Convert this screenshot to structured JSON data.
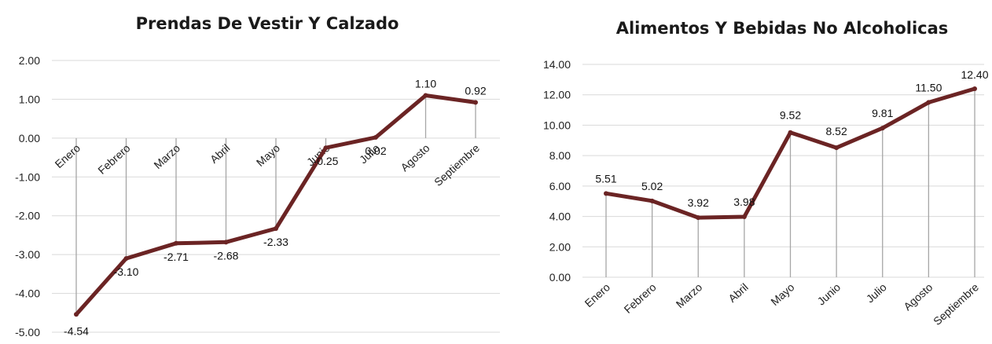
{
  "chart_data": [
    {
      "type": "line",
      "title": "Prendas De Vestir Y Calzado",
      "categories": [
        "Enero",
        "Febrero",
        "Marzo",
        "Abril",
        "Mayo",
        "Junio",
        "Julio",
        "Agosto",
        "Septiembre"
      ],
      "values": [
        -4.54,
        -3.1,
        -2.71,
        -2.68,
        -2.33,
        -0.25,
        0.02,
        1.1,
        0.92
      ],
      "data_labels": [
        "-4.54",
        "-3.10",
        "-2.71",
        "-2.68",
        "-2.33",
        "-0.25",
        "0.02",
        "1.10",
        "0.92"
      ],
      "ylim": [
        -5,
        2
      ],
      "yticks": [
        2,
        1,
        0,
        -1,
        -2,
        -3,
        -4,
        -5
      ],
      "ytick_labels": [
        "2.00",
        "1.00",
        "0.00",
        "-1.00",
        "-2.00",
        "-3.00",
        "-4.00",
        "-5.00"
      ],
      "grid": true,
      "drop_lines": true,
      "line_color": "#6b2424"
    },
    {
      "type": "line",
      "title": "Alimentos Y Bebidas No Alcoholicas",
      "categories": [
        "Enero",
        "Febrero",
        "Marzo",
        "Abril",
        "Mayo",
        "Junio",
        "Julio",
        "Agosto",
        "Septiembre"
      ],
      "values": [
        5.51,
        5.02,
        3.92,
        3.98,
        9.52,
        8.52,
        9.81,
        11.5,
        12.4
      ],
      "data_labels": [
        "5.51",
        "5.02",
        "3.92",
        "3.98",
        "9.52",
        "8.52",
        "9.81",
        "11.50",
        "12.40"
      ],
      "ylim": [
        0,
        14
      ],
      "yticks": [
        14,
        12,
        10,
        8,
        6,
        4,
        2,
        0
      ],
      "ytick_labels": [
        "14.00",
        "12.00",
        "10.00",
        "8.00",
        "6.00",
        "4.00",
        "2.00",
        "0.00"
      ],
      "grid": true,
      "drop_lines": true,
      "line_color": "#6b2424"
    }
  ]
}
